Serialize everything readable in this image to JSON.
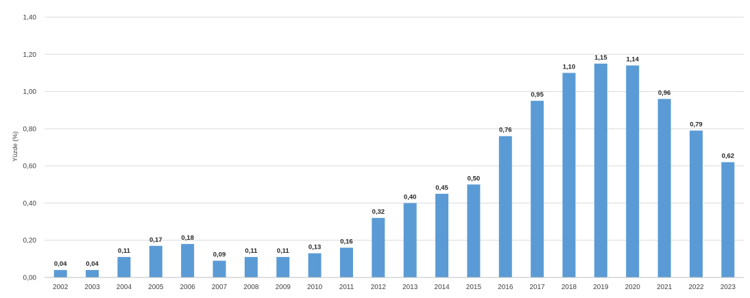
{
  "chart_data": {
    "type": "bar",
    "title": "",
    "xlabel": "",
    "ylabel": "Yüzde (%)",
    "categories": [
      "2002",
      "2003",
      "2004",
      "2005",
      "2006",
      "2007",
      "2008",
      "2009",
      "2010",
      "2011",
      "2012",
      "2013",
      "2014",
      "2015",
      "2016",
      "2017",
      "2018",
      "2019",
      "2020",
      "2021",
      "2022",
      "2023"
    ],
    "values": [
      0.04,
      0.04,
      0.11,
      0.17,
      0.18,
      0.09,
      0.11,
      0.11,
      0.13,
      0.16,
      0.32,
      0.4,
      0.45,
      0.5,
      0.76,
      0.95,
      1.1,
      1.15,
      1.14,
      0.96,
      0.79,
      0.62
    ],
    "data_labels": [
      "0,04",
      "0,04",
      "0,11",
      "0,17",
      "0,18",
      "0,09",
      "0,11",
      "0,11",
      "0,13",
      "0,16",
      "0,32",
      "0,40",
      "0,45",
      "0,50",
      "0,76",
      "0,95",
      "1,10",
      "1,15",
      "1,14",
      "0,96",
      "0,79",
      "0,62"
    ],
    "ylim": [
      0,
      1.4
    ],
    "yticks": [
      0,
      0.2,
      0.4,
      0.6,
      0.8,
      1.0,
      1.2,
      1.4
    ],
    "ytick_labels": [
      "0,00",
      "0,20",
      "0,40",
      "0,60",
      "0,80",
      "1,00",
      "1,20",
      "1,40"
    ],
    "grid": true,
    "legend": "none",
    "bar_color": "#5b9bd5"
  }
}
